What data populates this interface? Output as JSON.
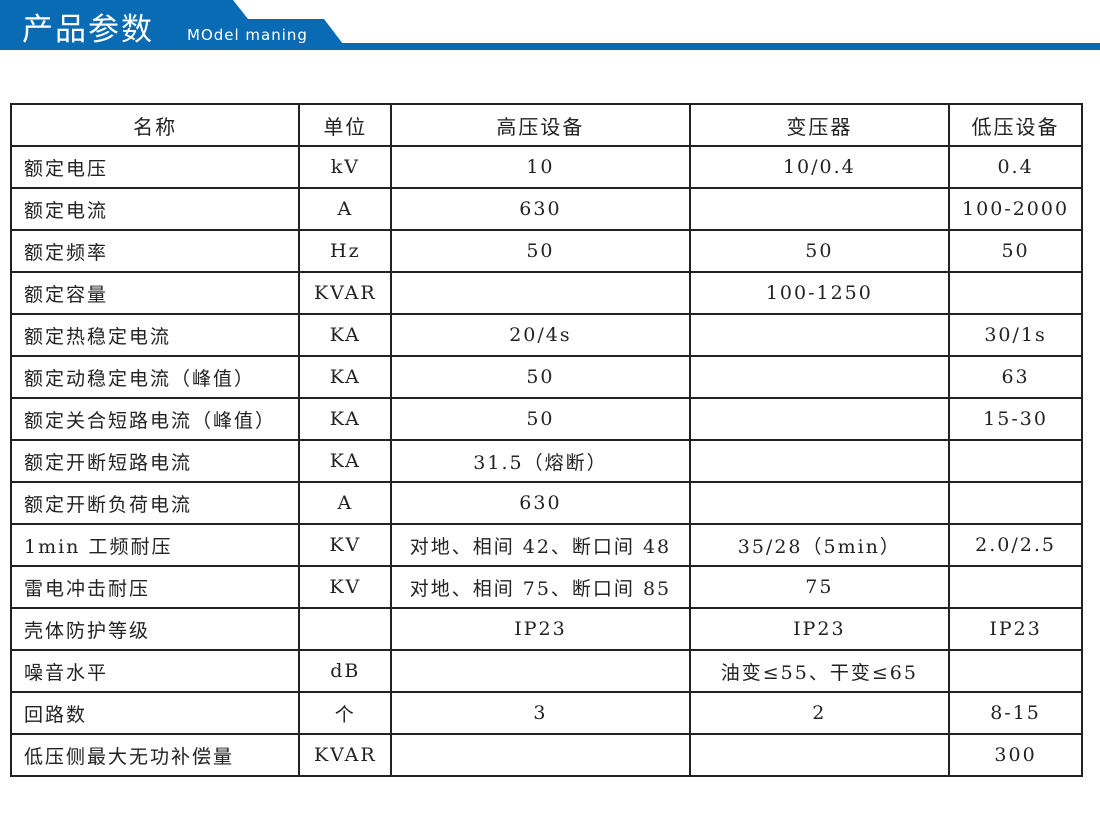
{
  "header": {
    "title": "产品参数",
    "subtitle": "MOdel maning",
    "color": "#0a6bb5"
  },
  "table": {
    "columns": [
      "名称",
      "单位",
      "高压设备",
      "变压器",
      "低压设备"
    ],
    "rows": [
      [
        "额定电压",
        "kV",
        "10",
        "10/0.4",
        "0.4"
      ],
      [
        "额定电流",
        "A",
        "630",
        "",
        "100-2000"
      ],
      [
        "额定频率",
        "Hz",
        "50",
        "50",
        "50"
      ],
      [
        "额定容量",
        "KVAR",
        "",
        "100-1250",
        ""
      ],
      [
        "额定热稳定电流",
        "KA",
        "20/4s",
        "",
        "30/1s"
      ],
      [
        "额定动稳定电流（峰值）",
        "KA",
        "50",
        "",
        "63"
      ],
      [
        "额定关合短路电流（峰值）",
        "KA",
        "50",
        "",
        "15-30"
      ],
      [
        "额定开断短路电流",
        "KA",
        "31.5（熔断）",
        "",
        ""
      ],
      [
        "额定开断负荷电流",
        "A",
        "630",
        "",
        ""
      ],
      [
        "1min 工频耐压",
        "KV",
        "对地、相间 42、断口间 48",
        "35/28（5min）",
        "2.0/2.5"
      ],
      [
        "雷电冲击耐压",
        "KV",
        "对地、相间 75、断口间 85",
        "75",
        ""
      ],
      [
        "壳体防护等级",
        "",
        "IP23",
        "IP23",
        "IP23"
      ],
      [
        "噪音水平",
        "dB",
        "",
        "油变≤55、干变≤65",
        ""
      ],
      [
        "回路数",
        "个",
        "3",
        "2",
        "8-15"
      ],
      [
        "低压侧最大无功补偿量",
        "KVAR",
        "",
        "",
        "300"
      ]
    ]
  }
}
